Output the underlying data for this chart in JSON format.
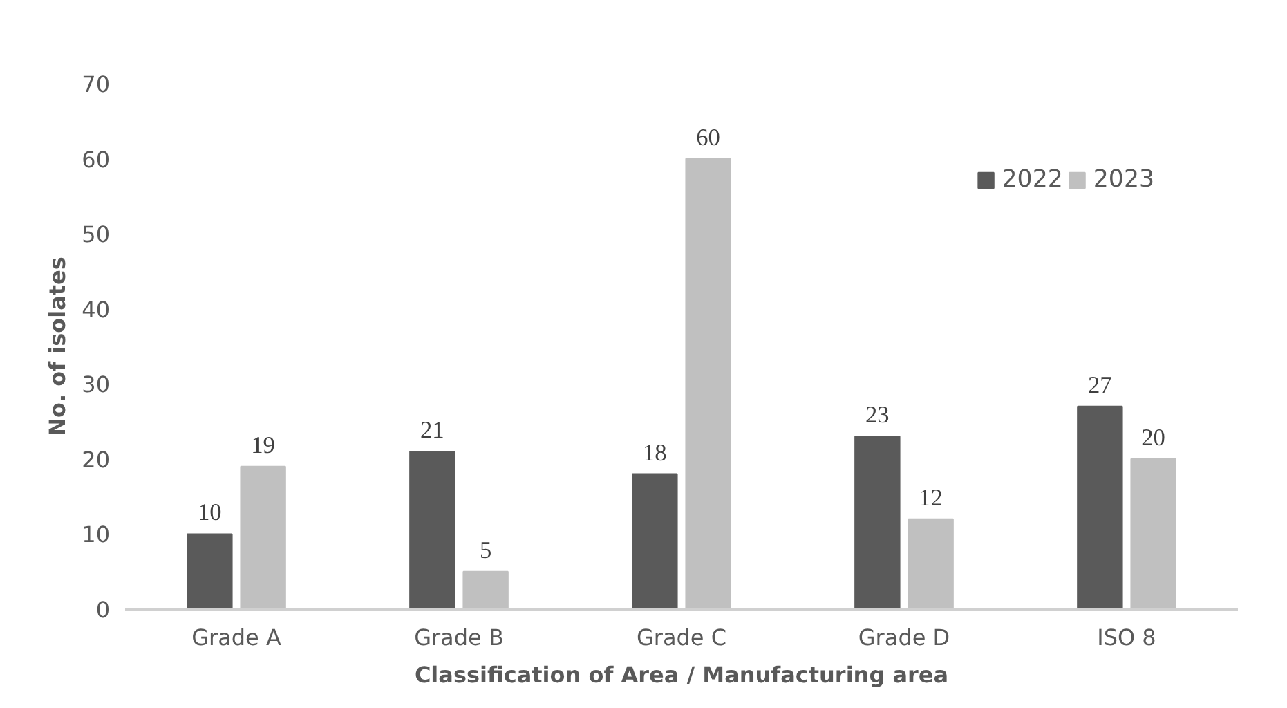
{
  "chart_data": {
    "type": "bar",
    "xlabel": "Classification of Area / Manufacturing area",
    "ylabel": "No. of isolates",
    "categories": [
      "Grade A",
      "Grade B",
      "Grade C",
      "Grade D",
      "ISO 8"
    ],
    "series": [
      {
        "name": "2022",
        "color": "#5a5a5a",
        "values": [
          10,
          21,
          18,
          23,
          27
        ]
      },
      {
        "name": "2023",
        "color": "#c0c0c0",
        "values": [
          19,
          5,
          60,
          12,
          20
        ]
      }
    ],
    "ylim": [
      0,
      70
    ],
    "yticks": [
      0,
      10,
      20,
      30,
      40,
      50,
      60,
      70
    ],
    "grid": false,
    "legend": "top right",
    "data_labels": true
  }
}
